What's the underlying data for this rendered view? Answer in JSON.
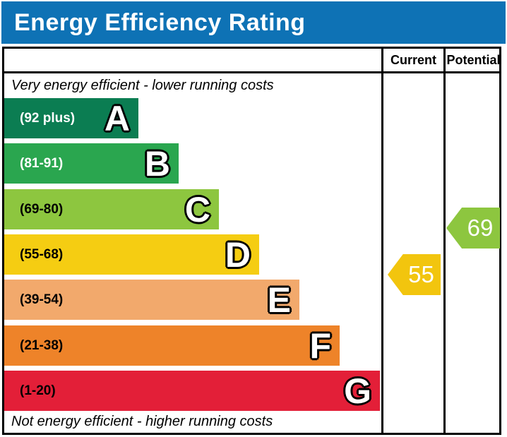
{
  "title": "Energy Efficiency Rating",
  "header": {
    "current": "Current",
    "potential": "Potential"
  },
  "captions": {
    "top": "Very energy efficient - lower running costs",
    "bottom": "Not energy efficient - higher running costs"
  },
  "colors": {
    "title_bar": "#0e72b5",
    "title_text": "#ffffff",
    "border": "#000000"
  },
  "chart_data": {
    "type": "bar",
    "orientation": "horizontal",
    "title": "Energy Efficiency Rating",
    "columns": [
      "Current",
      "Potential"
    ],
    "bands": [
      {
        "letter": "A",
        "range": "(92 plus)",
        "range_min": 92,
        "range_max": 100,
        "color": "#0b7d52",
        "label_color": "#ffffff"
      },
      {
        "letter": "B",
        "range": "(81-91)",
        "range_min": 81,
        "range_max": 91,
        "color": "#2aa64f",
        "label_color": "#ffffff"
      },
      {
        "letter": "C",
        "range": "(69-80)",
        "range_min": 69,
        "range_max": 80,
        "color": "#8dc63f",
        "label_color": "#000000"
      },
      {
        "letter": "D",
        "range": "(55-68)",
        "range_min": 55,
        "range_max": 68,
        "color": "#f5cd12",
        "label_color": "#000000"
      },
      {
        "letter": "E",
        "range": "(39-54)",
        "range_min": 39,
        "range_max": 54,
        "color": "#f2a96c",
        "label_color": "#000000"
      },
      {
        "letter": "F",
        "range": "(21-38)",
        "range_min": 21,
        "range_max": 38,
        "color": "#ee8329",
        "label_color": "#000000"
      },
      {
        "letter": "G",
        "range": "(1-20)",
        "range_min": 1,
        "range_max": 20,
        "color": "#e31f38",
        "label_color": "#000000"
      }
    ],
    "current": {
      "value": 55,
      "band": "D",
      "color": "#f2c50e"
    },
    "potential": {
      "value": 69,
      "band": "C",
      "color": "#8dc63f"
    }
  }
}
